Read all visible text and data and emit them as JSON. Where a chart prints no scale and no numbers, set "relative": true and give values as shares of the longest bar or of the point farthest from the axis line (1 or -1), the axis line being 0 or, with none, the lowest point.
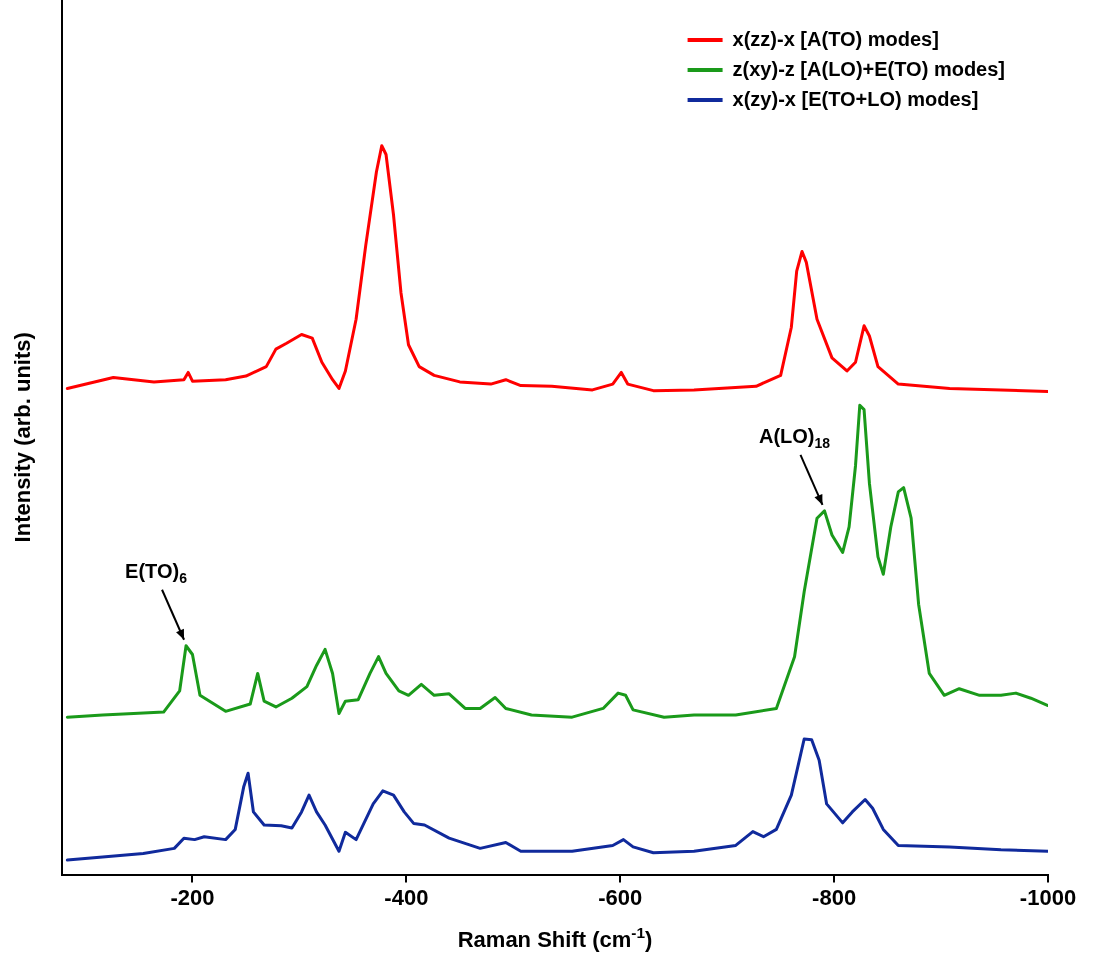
{
  "chart_data": {
    "type": "line",
    "relative": true,
    "xlabel": "Raman Shift (cm$^{-1}$)",
    "ylabel": "Intensity (arb. units)",
    "xlim": [
      -78,
      -1000
    ],
    "xticks": [
      -200,
      -400,
      -600,
      -800,
      -1000
    ],
    "grid": false,
    "legend": "top right",
    "marker": "none",
    "line_style": "solid",
    "series": [
      {
        "name": "x(zz)-x [A(TO) modes]",
        "color": "#ff0000",
        "x": [
          -83,
          -126,
          -164,
          -192,
          -196,
          -200,
          -231,
          -250,
          -269,
          -278,
          -288,
          -302,
          -312,
          -321,
          -331,
          -337,
          -343,
          -353,
          -362,
          -372,
          -377,
          -381,
          -388,
          -395,
          -402,
          -412,
          -426,
          -450,
          -479,
          -493,
          -507,
          -536,
          -574,
          -593,
          -601,
          -607,
          -631,
          -669,
          -727,
          -750,
          -760,
          -765,
          -770,
          -774,
          -784,
          -798,
          -812,
          -820,
          -828,
          -833,
          -841,
          -860,
          -908,
          -956,
          -1000
        ],
        "values": [
          0.667,
          0.682,
          0.676,
          0.679,
          0.689,
          0.677,
          0.679,
          0.684,
          0.697,
          0.721,
          0.729,
          0.741,
          0.736,
          0.703,
          0.679,
          0.667,
          0.691,
          0.762,
          0.863,
          0.964,
          1.0,
          0.988,
          0.905,
          0.798,
          0.727,
          0.697,
          0.685,
          0.676,
          0.673,
          0.679,
          0.671,
          0.67,
          0.665,
          0.673,
          0.689,
          0.673,
          0.664,
          0.665,
          0.67,
          0.685,
          0.751,
          0.828,
          0.855,
          0.84,
          0.762,
          0.709,
          0.691,
          0.703,
          0.753,
          0.739,
          0.697,
          0.673,
          0.667,
          0.665,
          0.663
        ]
      },
      {
        "name": "z(xy)-z [A(LO)+E(TO) modes]",
        "color": "#1a9a1a",
        "x": [
          -83,
          -116,
          -145,
          -173,
          -188,
          -194,
          -200,
          -207,
          -231,
          -254,
          -261,
          -267,
          -278,
          -293,
          -307,
          -316,
          -324,
          -331,
          -337,
          -343,
          -355,
          -366,
          -374,
          -381,
          -393,
          -402,
          -414,
          -426,
          -440,
          -455,
          -469,
          -483,
          -493,
          -517,
          -555,
          -584,
          -598,
          -605,
          -612,
          -641,
          -669,
          -708,
          -746,
          -763,
          -772,
          -784,
          -791,
          -798,
          -808,
          -814,
          -820,
          -824,
          -828,
          -833,
          -841,
          -846,
          -853,
          -860,
          -865,
          -872,
          -879,
          -889,
          -903,
          -917,
          -936,
          -956,
          -970,
          -984,
          -1000
        ],
        "values": [
          0.216,
          0.219,
          0.221,
          0.223,
          0.252,
          0.314,
          0.302,
          0.246,
          0.224,
          0.234,
          0.276,
          0.238,
          0.23,
          0.242,
          0.258,
          0.287,
          0.309,
          0.276,
          0.221,
          0.238,
          0.24,
          0.276,
          0.299,
          0.276,
          0.252,
          0.246,
          0.261,
          0.246,
          0.248,
          0.228,
          0.228,
          0.243,
          0.228,
          0.219,
          0.216,
          0.228,
          0.249,
          0.246,
          0.226,
          0.216,
          0.219,
          0.219,
          0.228,
          0.299,
          0.388,
          0.489,
          0.499,
          0.466,
          0.442,
          0.477,
          0.561,
          0.644,
          0.638,
          0.537,
          0.436,
          0.412,
          0.477,
          0.525,
          0.531,
          0.489,
          0.371,
          0.276,
          0.246,
          0.255,
          0.246,
          0.246,
          0.249,
          0.242,
          0.232
        ]
      },
      {
        "name": "x(zy)-x [E(TO+LO) modes]",
        "color": "#102a9c",
        "x": [
          -83,
          -116,
          -154,
          -183,
          -192,
          -202,
          -211,
          -231,
          -240,
          -248,
          -252,
          -257,
          -267,
          -283,
          -293,
          -302,
          -309,
          -316,
          -324,
          -337,
          -343,
          -353,
          -369,
          -378,
          -388,
          -398,
          -407,
          -417,
          -440,
          -469,
          -493,
          -507,
          -555,
          -593,
          -603,
          -612,
          -631,
          -669,
          -708,
          -724,
          -734,
          -746,
          -760,
          -772,
          -779,
          -786,
          -793,
          -808,
          -817,
          -829,
          -836,
          -846,
          -860,
          -908,
          -956,
          -1000
        ],
        "values": [
          0.02,
          0.024,
          0.029,
          0.036,
          0.05,
          0.048,
          0.052,
          0.048,
          0.062,
          0.121,
          0.139,
          0.086,
          0.068,
          0.067,
          0.064,
          0.086,
          0.109,
          0.086,
          0.068,
          0.032,
          0.058,
          0.048,
          0.097,
          0.115,
          0.109,
          0.086,
          0.07,
          0.068,
          0.05,
          0.036,
          0.044,
          0.032,
          0.032,
          0.04,
          0.048,
          0.038,
          0.03,
          0.032,
          0.04,
          0.059,
          0.052,
          0.062,
          0.109,
          0.186,
          0.185,
          0.157,
          0.097,
          0.071,
          0.086,
          0.103,
          0.091,
          0.062,
          0.04,
          0.038,
          0.034,
          0.032
        ]
      }
    ],
    "annotations": [
      {
        "text": "E(TO)$_{6}$",
        "x": -194,
        "y": 0.314
      },
      {
        "text": "A(LO)$_{18}$",
        "x": -791,
        "y": 0.499
      }
    ]
  }
}
